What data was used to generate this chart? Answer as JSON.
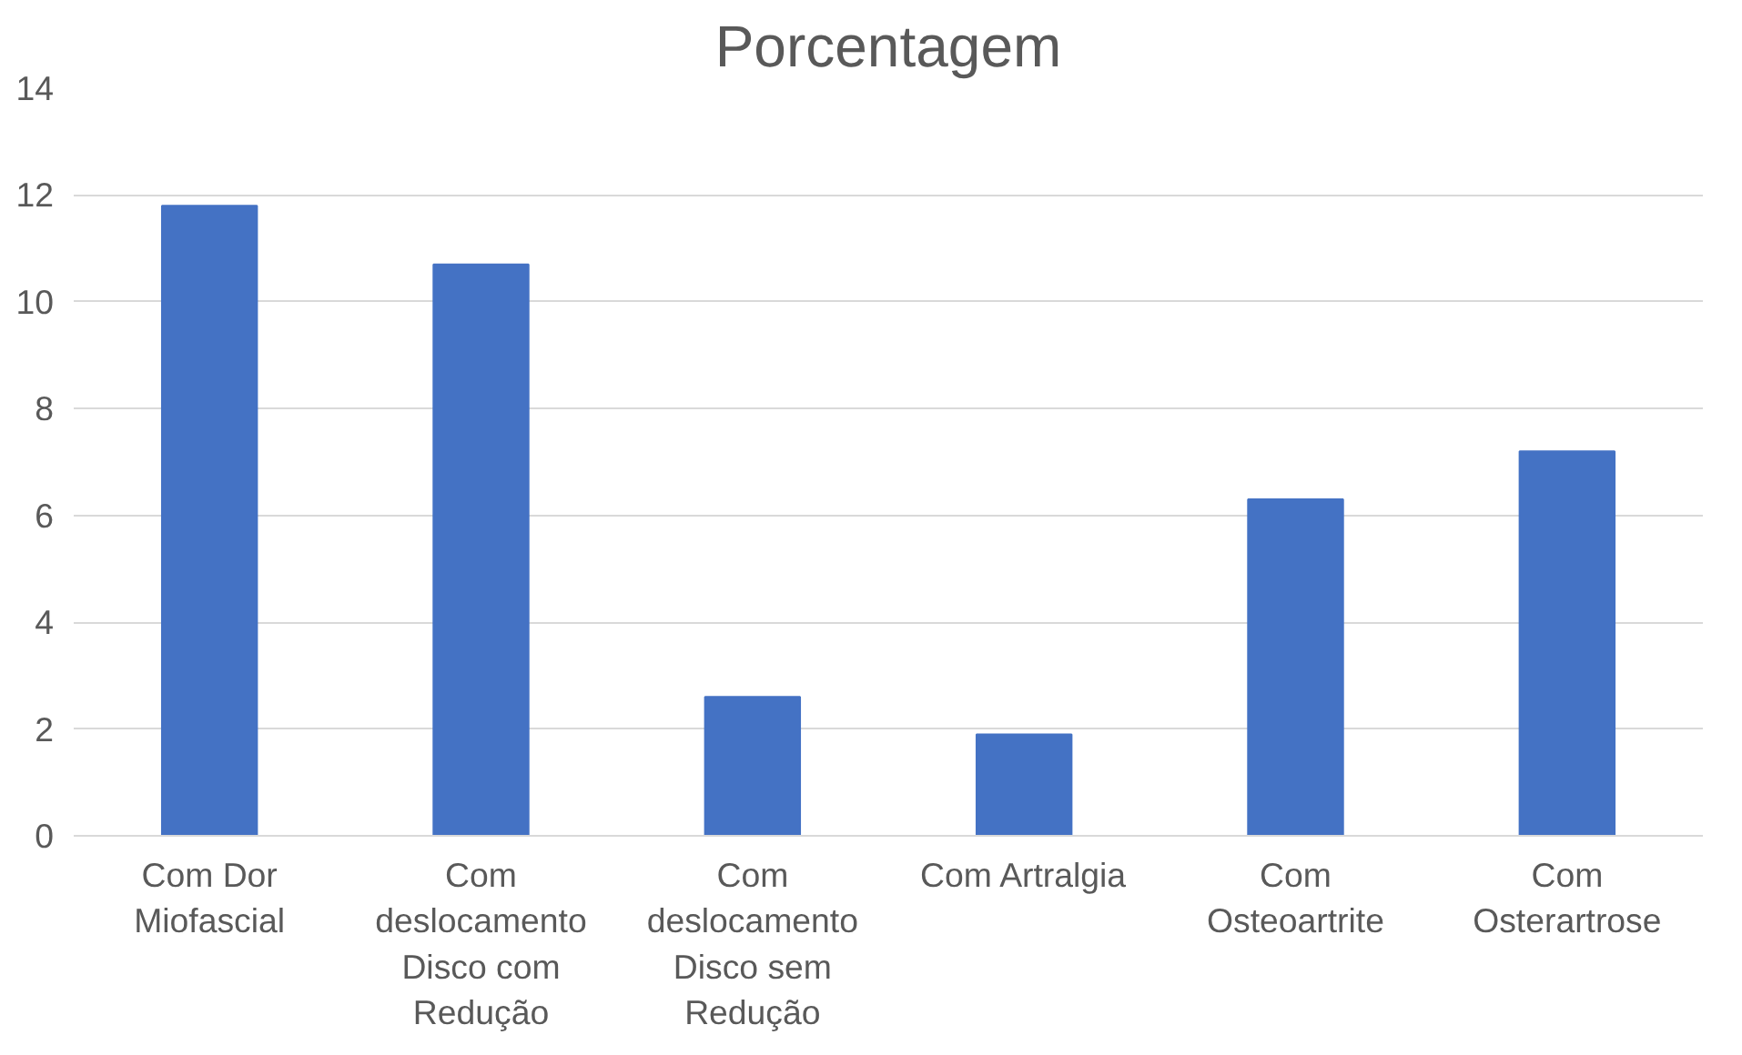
{
  "chart_data": {
    "type": "bar",
    "title": "Porcentagem",
    "categories": [
      "Com Dor Miofascial",
      "Com deslocamento Disco com Redução",
      "Com deslocamento Disco sem Redução",
      "Com Artralgia",
      "Com Osteoartrite",
      "Com Osterartrose"
    ],
    "values": [
      11.8,
      10.7,
      2.6,
      1.9,
      6.3,
      7.2
    ],
    "color": "#4472c4",
    "ylim": [
      0,
      14
    ],
    "yticks": [
      0,
      2,
      4,
      6,
      8,
      10,
      12,
      14
    ],
    "grid": "y"
  }
}
